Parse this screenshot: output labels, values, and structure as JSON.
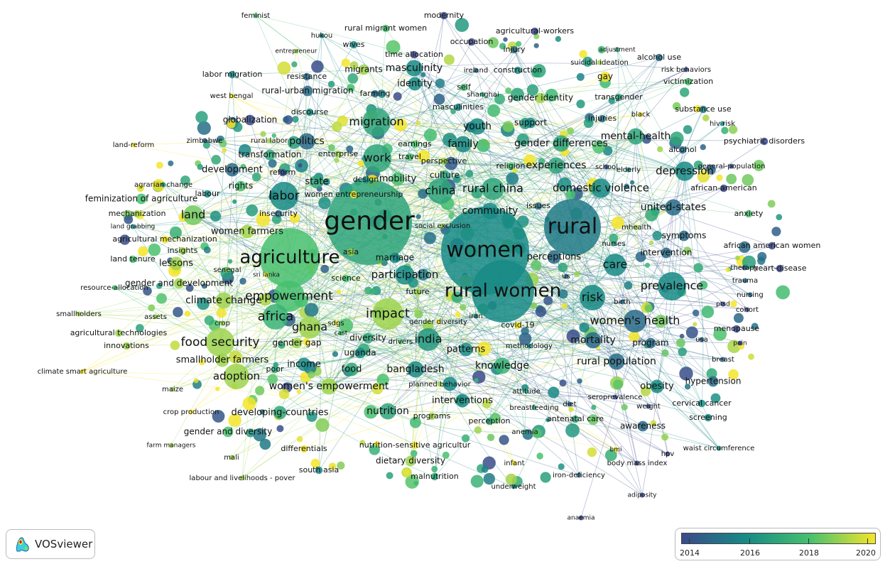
{
  "app": {
    "logo_text": "VOSviewer"
  },
  "legend": {
    "years": [
      "2014",
      "2016",
      "2018",
      "2020"
    ],
    "gradient_colors": [
      "#3b4a8a",
      "#178a85",
      "#46c06f",
      "#f5e52a"
    ]
  },
  "keywords": [
    {
      "label": "feminist",
      "year": 2018
    },
    {
      "label": "modernity",
      "year": 2014
    },
    {
      "label": "rural migrant women",
      "year": 2018
    },
    {
      "label": "agricultural-workers",
      "year": 2014
    },
    {
      "label": "hukou",
      "year": 2016
    },
    {
      "label": "wives",
      "year": 2016
    },
    {
      "label": "occupation",
      "year": 2014
    },
    {
      "label": "entrepreneur",
      "year": 2019
    },
    {
      "label": "adjustment",
      "year": 2017
    },
    {
      "label": "injury",
      "year": 2015
    },
    {
      "label": "alcohol use",
      "year": 2015
    },
    {
      "label": "time allocation",
      "year": 2014
    },
    {
      "label": "suicidal ideation",
      "year": 2019
    },
    {
      "label": "ireland",
      "year": 2015
    },
    {
      "label": "construction",
      "year": 2016
    },
    {
      "label": "risk behaviors",
      "year": 2014
    },
    {
      "label": "migrants",
      "year": 2019
    },
    {
      "label": "masculinity",
      "year": 2016
    },
    {
      "label": "gay",
      "year": 2020
    },
    {
      "label": "labor migration",
      "year": 2016
    },
    {
      "label": "resistance",
      "year": 2015
    },
    {
      "label": "victimization",
      "year": 2018
    },
    {
      "label": "identity",
      "year": 2016
    },
    {
      "label": "self",
      "year": 2018
    },
    {
      "label": "rural-urban migration",
      "year": 2015
    },
    {
      "label": "west bengal",
      "year": 2020
    },
    {
      "label": "farming",
      "year": 2015
    },
    {
      "label": "shanghai",
      "year": 2017
    },
    {
      "label": "gender identity",
      "year": 2019
    },
    {
      "label": "transgender",
      "year": 2017
    },
    {
      "label": "masculinities",
      "year": 2016
    },
    {
      "label": "discourse",
      "year": 2016
    },
    {
      "label": "substance use",
      "year": 2015.5
    },
    {
      "label": "injuries",
      "year": 2015
    },
    {
      "label": "black",
      "year": 2020
    },
    {
      "label": "globalization",
      "year": 2014
    },
    {
      "label": "migration",
      "year": 2017
    },
    {
      "label": "hiv risk",
      "year": 2016
    },
    {
      "label": "youth",
      "year": 2016
    },
    {
      "label": "support",
      "year": 2016
    },
    {
      "label": "zimbabwe",
      "year": 2015
    },
    {
      "label": "rural labor",
      "year": 2019
    },
    {
      "label": "politics",
      "year": 2015
    },
    {
      "label": "earnings",
      "year": 2018
    },
    {
      "label": "family",
      "year": 2016
    },
    {
      "label": "mental-health",
      "year": 2017
    },
    {
      "label": "gender differences",
      "year": 2017
    },
    {
      "label": "psychiatric disorders",
      "year": 2014
    },
    {
      "label": "land-reform",
      "year": 2020
    },
    {
      "label": "transformation",
      "year": 2017
    },
    {
      "label": "enterprise",
      "year": 2019
    },
    {
      "label": "travel",
      "year": 2018
    },
    {
      "label": "alcohol",
      "year": 2015
    },
    {
      "label": "work",
      "year": 2017
    },
    {
      "label": "perspective",
      "year": 2019
    },
    {
      "label": "development",
      "year": 2015
    },
    {
      "label": "reform",
      "year": 2014
    },
    {
      "label": "religion",
      "year": 2018
    },
    {
      "label": "experiences",
      "year": 2017
    },
    {
      "label": "school",
      "year": 2014
    },
    {
      "label": "elderly",
      "year": 2016
    },
    {
      "label": "depression",
      "year": 2016
    },
    {
      "label": "general-population",
      "year": 2014
    },
    {
      "label": "design",
      "year": 2016
    },
    {
      "label": "mobility",
      "year": 2018
    },
    {
      "label": "culture",
      "year": 2017
    },
    {
      "label": "agrarian change",
      "year": 2016
    },
    {
      "label": "rights",
      "year": 2018
    },
    {
      "label": "state",
      "year": 2017
    },
    {
      "label": "labour",
      "year": 2016
    },
    {
      "label": "women entrepreneurship",
      "year": 2020
    },
    {
      "label": "china",
      "year": 2017
    },
    {
      "label": "rural china",
      "year": 2017
    },
    {
      "label": "domestic violence",
      "year": 2016
    },
    {
      "label": "african-american",
      "year": 2014
    },
    {
      "label": "feminization of agriculture",
      "year": 2018
    },
    {
      "label": "labor",
      "year": 2016
    },
    {
      "label": "land",
      "year": 2018.5
    },
    {
      "label": "insecurity",
      "year": 2015
    },
    {
      "label": "gender",
      "year": 2017
    },
    {
      "label": "community",
      "year": 2016
    },
    {
      "label": "united-states",
      "year": 2015
    },
    {
      "label": "anxiety",
      "year": 2018
    },
    {
      "label": "mechanization",
      "year": 2019
    },
    {
      "label": "land grabbing",
      "year": 2016
    },
    {
      "label": "issues",
      "year": 2015
    },
    {
      "label": "social exclusion",
      "year": 2019
    },
    {
      "label": "rural",
      "year": 2015.5
    },
    {
      "label": "women farmers",
      "year": 2019
    },
    {
      "label": "mhealth",
      "year": 2019
    },
    {
      "label": "symptoms",
      "year": 2015
    },
    {
      "label": "agricultural mechanization",
      "year": 2020
    },
    {
      "label": "insights",
      "year": 2019
    },
    {
      "label": "perceptions",
      "year": 2015
    },
    {
      "label": "nurses",
      "year": 2016
    },
    {
      "label": "african american women",
      "year": 2014
    },
    {
      "label": "intervention",
      "year": 2015
    },
    {
      "label": "women",
      "year": 2016
    },
    {
      "label": "land tenure",
      "year": 2018
    },
    {
      "label": "asia",
      "year": 2019
    },
    {
      "label": "marriage",
      "year": 2016
    },
    {
      "label": "agriculture",
      "year": 2018
    },
    {
      "label": "lessons",
      "year": 2019
    },
    {
      "label": "care",
      "year": 2016
    },
    {
      "label": "therapy",
      "year": 2014
    },
    {
      "label": "heart-disease",
      "year": 2014
    },
    {
      "label": "senegal",
      "year": 2019
    },
    {
      "label": "sri lanka",
      "year": 2020
    },
    {
      "label": "science",
      "year": 2018
    },
    {
      "label": "participation",
      "year": 2016
    },
    {
      "label": "us",
      "year": 2015
    },
    {
      "label": "trauma",
      "year": 2015
    },
    {
      "label": "gender and development",
      "year": 2019
    },
    {
      "label": "resource-allocation",
      "year": 2018
    },
    {
      "label": "prevalence",
      "year": 2016
    },
    {
      "label": "rural women",
      "year": 2016
    },
    {
      "label": "future",
      "year": 2019
    },
    {
      "label": "empowerment",
      "year": 2018
    },
    {
      "label": "nursing",
      "year": 2015
    },
    {
      "label": "climate change",
      "year": 2019
    },
    {
      "label": "risk",
      "year": 2016
    },
    {
      "label": "birth",
      "year": 2015
    },
    {
      "label": "ptsd",
      "year": 2014
    },
    {
      "label": "iran",
      "year": 2016
    },
    {
      "label": "impact",
      "year": 2019
    },
    {
      "label": "cohort",
      "year": 2014
    },
    {
      "label": "smallholders",
      "year": 2019
    },
    {
      "label": "assets",
      "year": 2019
    },
    {
      "label": "africa",
      "year": 2017.5
    },
    {
      "label": "gender diversity",
      "year": 2020
    },
    {
      "label": "women's health",
      "year": 2015
    },
    {
      "label": "crop",
      "year": 2019
    },
    {
      "label": "sdgs",
      "year": 2020
    },
    {
      "label": "covid-19",
      "year": 2020
    },
    {
      "label": "menopause",
      "year": 2014
    },
    {
      "label": "ghana",
      "year": 2019
    },
    {
      "label": "cast",
      "year": 2018
    },
    {
      "label": "agricultural technologies",
      "year": 2019
    },
    {
      "label": "diversity",
      "year": 2017
    },
    {
      "label": "drivers",
      "year": 2018
    },
    {
      "label": "india",
      "year": 2016.5
    },
    {
      "label": "usa",
      "year": 2015
    },
    {
      "label": "mortality",
      "year": 2015
    },
    {
      "label": "food security",
      "year": 2019
    },
    {
      "label": "innovations",
      "year": 2019
    },
    {
      "label": "methodology",
      "year": 2016
    },
    {
      "label": "program",
      "year": 2015
    },
    {
      "label": "pain",
      "year": 2014
    },
    {
      "label": "gender gap",
      "year": 2019
    },
    {
      "label": "uganda",
      "year": 2016
    },
    {
      "label": "patterns",
      "year": 2016
    },
    {
      "label": "breast",
      "year": 2015
    },
    {
      "label": "smallholder farmers",
      "year": 2019
    },
    {
      "label": "rural population",
      "year": 2015
    },
    {
      "label": "income",
      "year": 2016
    },
    {
      "label": "knowledge",
      "year": 2017.5
    },
    {
      "label": "food",
      "year": 2017
    },
    {
      "label": "bangladesh",
      "year": 2016
    },
    {
      "label": "climate smart agriculture",
      "year": 2020
    },
    {
      "label": "poor",
      "year": 2017
    },
    {
      "label": "adoption",
      "year": 2019
    },
    {
      "label": "women's empowerment",
      "year": 2019
    },
    {
      "label": "obesity",
      "year": 2016
    },
    {
      "label": "hypertension",
      "year": 2015
    },
    {
      "label": "seroprevalence",
      "year": 2014
    },
    {
      "label": "attitude",
      "year": 2017
    },
    {
      "label": "planned behavior",
      "year": 2019
    },
    {
      "label": "interventions",
      "year": 2016
    },
    {
      "label": "maize",
      "year": 2019
    },
    {
      "label": "weight",
      "year": 2014
    },
    {
      "label": "cervical cancer",
      "year": 2016
    },
    {
      "label": "breastfeeding",
      "year": 2017
    },
    {
      "label": "diet",
      "year": 2015
    },
    {
      "label": "developing-countries",
      "year": 2017
    },
    {
      "label": "nutrition",
      "year": 2017
    },
    {
      "label": "crop production",
      "year": 2020
    },
    {
      "label": "programs",
      "year": 2019
    },
    {
      "label": "perception",
      "year": 2017
    },
    {
      "label": "screening",
      "year": 2016
    },
    {
      "label": "antenatal care",
      "year": 2017
    },
    {
      "label": "awareness",
      "year": 2015
    },
    {
      "label": "gender and diversity",
      "year": 2018
    },
    {
      "label": "anemia",
      "year": 2017
    },
    {
      "label": "differentials",
      "year": 2020
    },
    {
      "label": "nutrition-sensitive agricultur",
      "year": 2020
    },
    {
      "label": "waist circumference",
      "year": 2016
    },
    {
      "label": "farm managers",
      "year": 2019
    },
    {
      "label": "bmi",
      "year": 2020
    },
    {
      "label": "hpv",
      "year": 2014
    },
    {
      "label": "mali",
      "year": 2019
    },
    {
      "label": "dietary diversity",
      "year": 2019
    },
    {
      "label": "infant",
      "year": 2020
    },
    {
      "label": "body mass index",
      "year": 2014
    },
    {
      "label": "south asia",
      "year": 2016
    },
    {
      "label": "labour and livelihoods - pover",
      "year": 2019
    },
    {
      "label": "malnutrition",
      "year": 2017
    },
    {
      "label": "iron-deficiency",
      "year": 2015
    },
    {
      "label": "underweight",
      "year": 2016
    },
    {
      "label": "adiposity",
      "year": 2014
    },
    {
      "label": "anaemia",
      "year": 2014
    }
  ]
}
